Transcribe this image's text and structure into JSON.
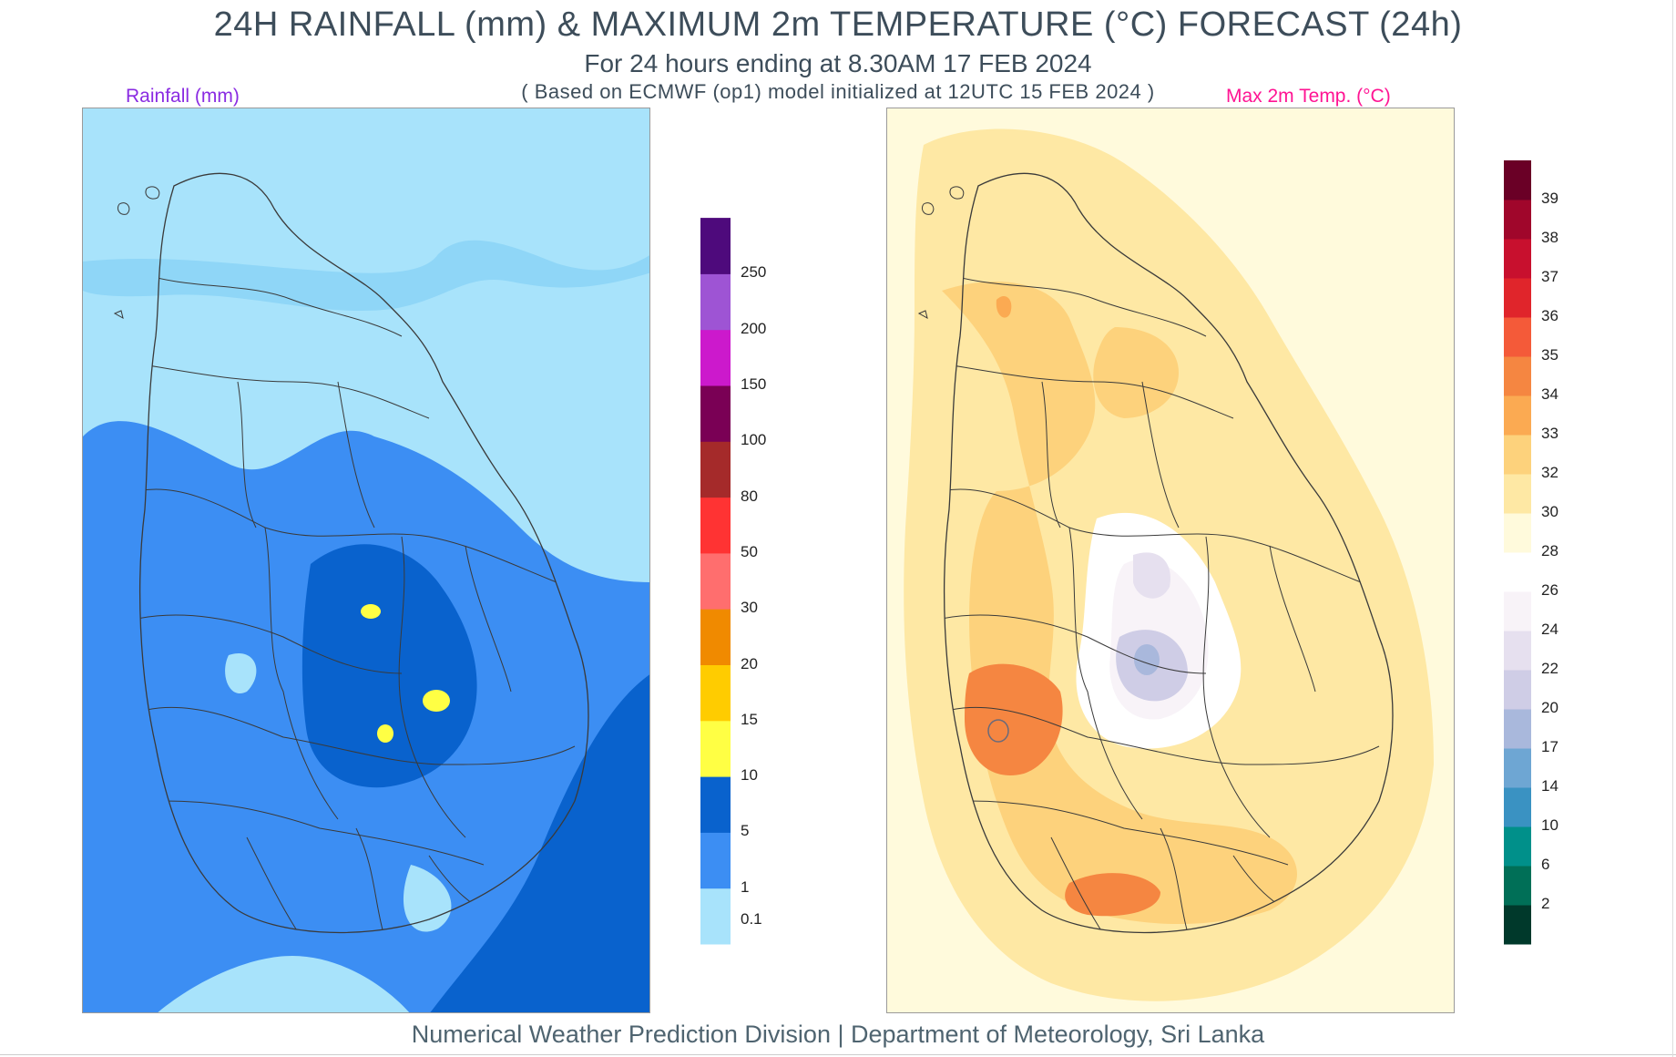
{
  "header": {
    "title": "24H RAINFALL (mm) & MAXIMUM 2m TEMPERATURE (°C) FORECAST (24h)",
    "subtitle": "For 24 hours ending at 8.30AM 17 FEB 2024",
    "model_note": "( Based on ECMWF (op1) model initialized at 12UTC 15 FEB 2024 )"
  },
  "rain_panel": {
    "label": "Rainfall (mm)",
    "legend": {
      "colors": [
        "#a8e3fb",
        "#3c8ef3",
        "#0962cd",
        "#ffff44",
        "#ffcc00",
        "#f08a00",
        "#ff6e6e",
        "#ff3333",
        "#a52a2a",
        "#7a0055",
        "#cc19cc",
        "#9e54d4",
        "#4e0a7c"
      ],
      "labels": [
        "0.1",
        "1",
        "5",
        "10",
        "15",
        "20",
        "30",
        "50",
        "80",
        "100",
        "150",
        "200",
        "250"
      ]
    }
  },
  "temp_panel": {
    "label": "Max 2m Temp. (°C)",
    "legend": {
      "colors": [
        "#00392b",
        "#006f57",
        "#00908a",
        "#3a92c2",
        "#6ea6d3",
        "#a9b8dc",
        "#cfcde6",
        "#e6e0ef",
        "#f8f3f8",
        "#ffffff",
        "#fffadc",
        "#fee8a4",
        "#fdd27c",
        "#fbaa52",
        "#f58641",
        "#f45a39",
        "#e0252b",
        "#c8102e",
        "#a0062b",
        "#6a0026"
      ],
      "labels": [
        "2",
        "6",
        "10",
        "14",
        "17",
        "20",
        "22",
        "24",
        "26",
        "28",
        "30",
        "32",
        "33",
        "34",
        "35",
        "36",
        "37",
        "38",
        "39"
      ]
    }
  },
  "footer": {
    "credit": "Numerical Weather Prediction Division | Department of Meteorology, Sri Lanka"
  }
}
